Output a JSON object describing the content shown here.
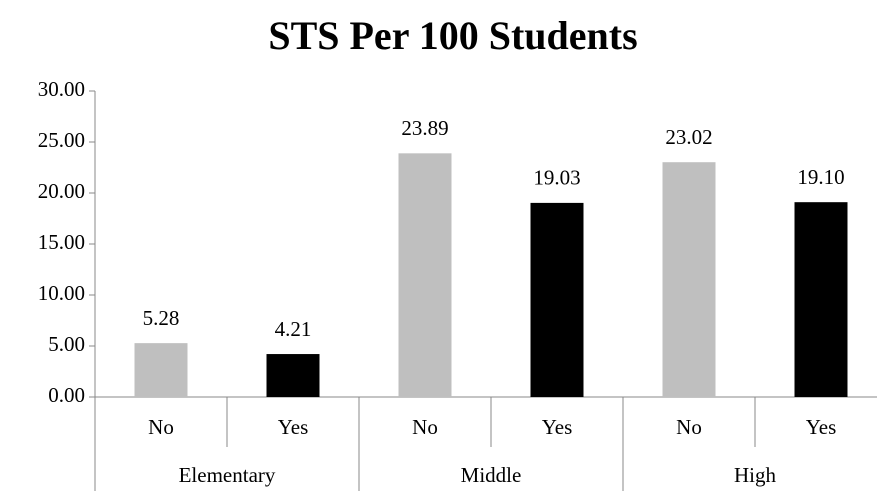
{
  "chart_data": {
    "type": "bar",
    "title": "STS Per 100 Students",
    "categories": [
      "No",
      "Yes",
      "No",
      "Yes",
      "No",
      "Yes"
    ],
    "groups": [
      "Elementary",
      "Middle",
      "High"
    ],
    "values": [
      5.28,
      4.21,
      23.89,
      19.03,
      23.02,
      19.1
    ],
    "value_labels": [
      "5.28",
      "4.21",
      "23.89",
      "19.03",
      "23.02",
      "19.10"
    ],
    "colors": [
      "#bfbfbf",
      "#000000",
      "#bfbfbf",
      "#000000",
      "#bfbfbf",
      "#000000"
    ],
    "ylim": [
      0,
      30
    ],
    "yticks": [
      {
        "value": 0,
        "label": "0.00"
      },
      {
        "value": 5,
        "label": "5.00"
      },
      {
        "value": 10,
        "label": "10.00"
      },
      {
        "value": 15,
        "label": "15.00"
      },
      {
        "value": 20,
        "label": "20.00"
      },
      {
        "value": 25,
        "label": "25.00"
      },
      {
        "value": 30,
        "label": "30.00"
      }
    ],
    "grid": false
  }
}
